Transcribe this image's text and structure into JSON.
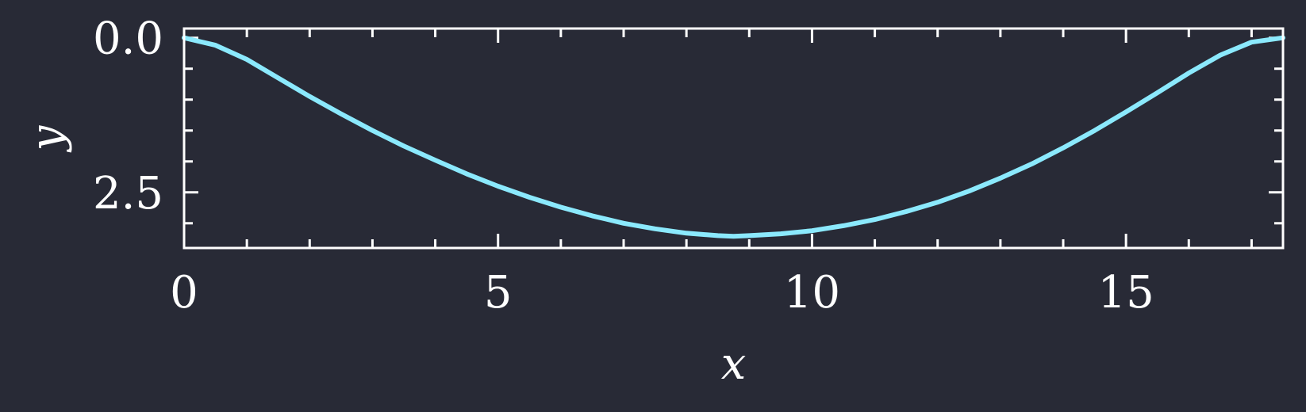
{
  "colors": {
    "background": "#282a36",
    "axes": "#ffffff",
    "line": "#8be9fd"
  },
  "chart_data": {
    "type": "line",
    "title": "",
    "xlabel": "x",
    "ylabel": "y",
    "xlim": [
      0,
      17.5
    ],
    "ylim": [
      3.4,
      -0.15
    ],
    "y_inverted": true,
    "grid": false,
    "x_major_ticks": [
      0,
      5,
      10,
      15
    ],
    "x_tick_labels": [
      "0",
      "5",
      "10",
      "15"
    ],
    "x_minor_ticks": [
      1,
      2,
      3,
      4,
      6,
      7,
      8,
      9,
      11,
      12,
      13,
      14,
      16,
      17
    ],
    "y_major_ticks": [
      0.0,
      2.5
    ],
    "y_tick_labels": [
      "0.0",
      "2.5"
    ],
    "y_minor_ticks": [
      0.5,
      1.0,
      1.5,
      2.0,
      3.0
    ],
    "series": [
      {
        "x": [
          0,
          0.5,
          1,
          1.5,
          2,
          2.5,
          3,
          3.5,
          4,
          4.5,
          5,
          5.5,
          6,
          6.5,
          7,
          7.5,
          8,
          8.5,
          8.75,
          9,
          9.5,
          10,
          10.5,
          11,
          11.5,
          12,
          12.5,
          13,
          13.5,
          14,
          14.5,
          15,
          15.5,
          16,
          16.5,
          17,
          17.5
        ],
        "y": [
          0.0,
          0.12,
          0.35,
          0.65,
          0.95,
          1.23,
          1.5,
          1.75,
          1.98,
          2.2,
          2.4,
          2.58,
          2.74,
          2.88,
          3.0,
          3.09,
          3.16,
          3.2,
          3.21,
          3.2,
          3.17,
          3.12,
          3.04,
          2.94,
          2.81,
          2.66,
          2.48,
          2.27,
          2.04,
          1.78,
          1.5,
          1.2,
          0.89,
          0.57,
          0.28,
          0.07,
          0.0
        ]
      }
    ]
  }
}
